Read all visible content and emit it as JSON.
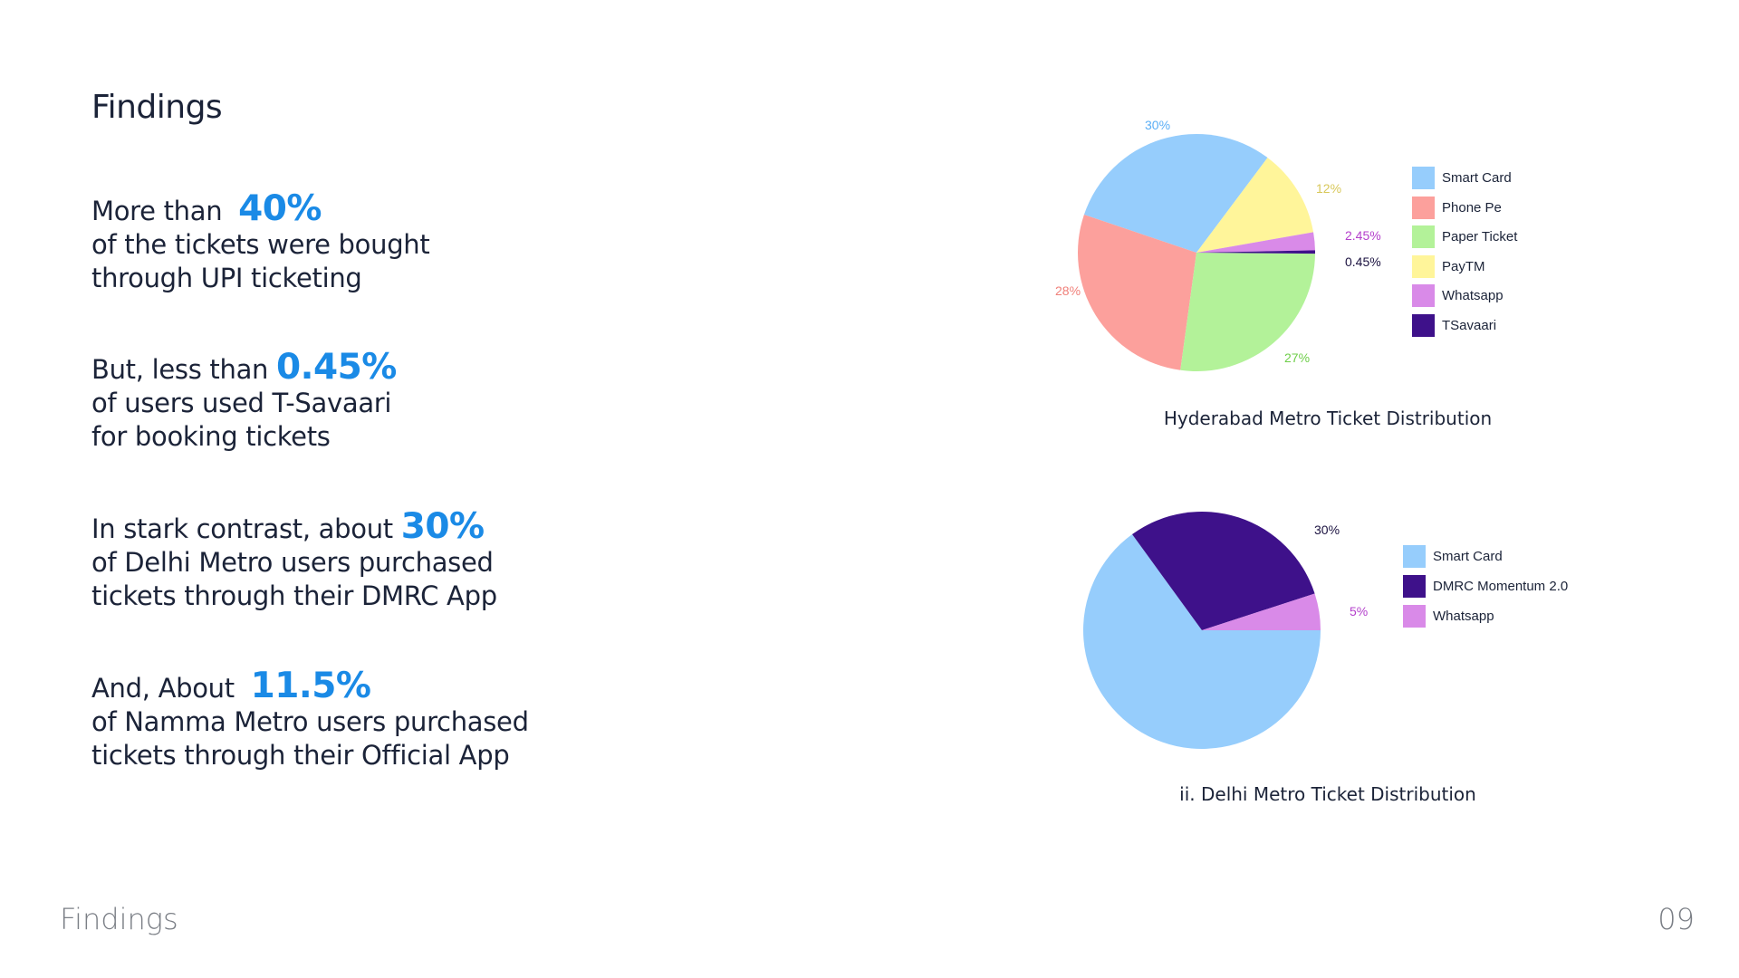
{
  "page": {
    "title": "Findings",
    "footer_label": "Findings",
    "page_number": "09"
  },
  "findings": [
    {
      "prefix": "More than",
      "highlight": "40%",
      "lines": [
        "of the tickets were bought",
        "through UPI ticketing"
      ]
    },
    {
      "prefix": "But, less than",
      "highlight": "0.45%",
      "lines": [
        "of users used T-Savaari",
        "for booking tickets"
      ]
    },
    {
      "prefix": "In stark contrast, about",
      "highlight": "30%",
      "lines": [
        "of Delhi Metro users purchased",
        "tickets through their DMRC App"
      ]
    },
    {
      "prefix": "And, About",
      "highlight": "11.5%",
      "lines": [
        "of Namma Metro users purchased",
        "tickets through their Official App"
      ]
    }
  ],
  "colors": {
    "highlight": "#1a8ae6",
    "text": "#1b2338",
    "muted": "#7b7f86"
  },
  "chart_data": [
    {
      "type": "pie",
      "title": "Hyderabad Metro Ticket Distribution",
      "legend_position": "right",
      "series": [
        {
          "name": "Smart Card",
          "value": 30,
          "label": "30%",
          "color": "#96cdfc",
          "label_color": "#5aaef5"
        },
        {
          "name": "Phone Pe",
          "value": 28,
          "label": "28%",
          "color": "#fca09c",
          "label_color": "#f0807a"
        },
        {
          "name": "Paper Ticket",
          "value": 27,
          "label": "27%",
          "color": "#b3f299",
          "label_color": "#6fce4a"
        },
        {
          "name": "PayTM",
          "value": 12,
          "label": "12%",
          "color": "#fff59a",
          "label_color": "#d8c85a"
        },
        {
          "name": "Whatsapp",
          "value": 2.45,
          "label": "2.45%",
          "color": "#d98ae8",
          "label_color": "#b440cc"
        },
        {
          "name": "TSavaari",
          "value": 0.45,
          "label": "0.45%",
          "color": "#3e118a",
          "label_color": "#1b1240"
        }
      ]
    },
    {
      "type": "pie",
      "title": "ii. Delhi Metro Ticket Distribution",
      "legend_position": "right",
      "series": [
        {
          "name": "Smart Card",
          "value": 65,
          "label": "",
          "color": "#96cdfc",
          "label_color": "#5aaef5"
        },
        {
          "name": "DMRC Momentum 2.0",
          "value": 30,
          "label": "30%",
          "color": "#3e118a",
          "label_color": "#1b1240"
        },
        {
          "name": "Whatsapp",
          "value": 5,
          "label": "5%",
          "color": "#d98ae8",
          "label_color": "#b440cc"
        }
      ]
    }
  ]
}
